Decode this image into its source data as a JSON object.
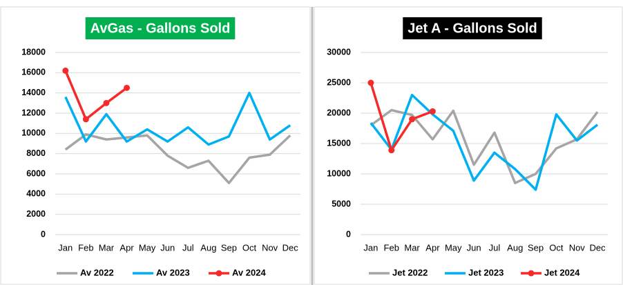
{
  "chart_data": [
    {
      "type": "line",
      "title": "AvGas - Gallons Sold",
      "title_background": "#00b050",
      "title_color": "#ffffff",
      "categories": [
        "Jan",
        "Feb",
        "Mar",
        "Apr",
        "May",
        "Jun",
        "Jul",
        "Aug",
        "Sep",
        "Oct",
        "Nov",
        "Dec"
      ],
      "ylim": [
        0,
        18000
      ],
      "yticks": [
        0,
        2000,
        4000,
        6000,
        8000,
        10000,
        12000,
        14000,
        16000,
        18000
      ],
      "grid": true,
      "legend": "bottom",
      "series": [
        {
          "name": "Av 2022",
          "color": "#a5a5a5",
          "marker": false,
          "values": [
            8400,
            9900,
            9400,
            9600,
            9800,
            7800,
            6600,
            7300,
            5100,
            7600,
            7900,
            9800
          ]
        },
        {
          "name": "Av 2023",
          "color": "#00b0f0",
          "marker": false,
          "values": [
            13600,
            9200,
            11900,
            9200,
            10400,
            9200,
            10600,
            8900,
            9700,
            14000,
            9400,
            10800
          ]
        },
        {
          "name": "Av 2024",
          "color": "#f52a2a",
          "marker": true,
          "values": [
            16200,
            11400,
            13000,
            14500,
            null,
            null,
            null,
            null,
            null,
            null,
            null,
            null
          ]
        }
      ]
    },
    {
      "type": "line",
      "title": "Jet A - Gallons Sold",
      "title_background": "#000000",
      "title_color": "#ffffff",
      "categories": [
        "Jan",
        "Feb",
        "Mar",
        "Apr",
        "May",
        "Jun",
        "Jul",
        "Aug",
        "Sep",
        "Oct",
        "Nov",
        "Dec"
      ],
      "ylim": [
        0,
        30000
      ],
      "yticks": [
        0,
        5000,
        10000,
        15000,
        20000,
        25000,
        30000
      ],
      "grid": true,
      "legend": "bottom",
      "series": [
        {
          "name": "Jet 2022",
          "color": "#a5a5a5",
          "marker": false,
          "values": [
            18000,
            20500,
            19700,
            15700,
            20400,
            11500,
            16800,
            8500,
            10000,
            14200,
            15700,
            20200
          ]
        },
        {
          "name": "Jet 2023",
          "color": "#00b0f0",
          "marker": false,
          "values": [
            18400,
            14000,
            23000,
            19800,
            17100,
            8900,
            13500,
            10800,
            7400,
            19800,
            15500,
            18100
          ]
        },
        {
          "name": "Jet 2024",
          "color": "#f52a2a",
          "marker": true,
          "values": [
            25000,
            13900,
            19000,
            20300,
            null,
            null,
            null,
            null,
            null,
            null,
            null,
            null
          ]
        }
      ]
    }
  ]
}
